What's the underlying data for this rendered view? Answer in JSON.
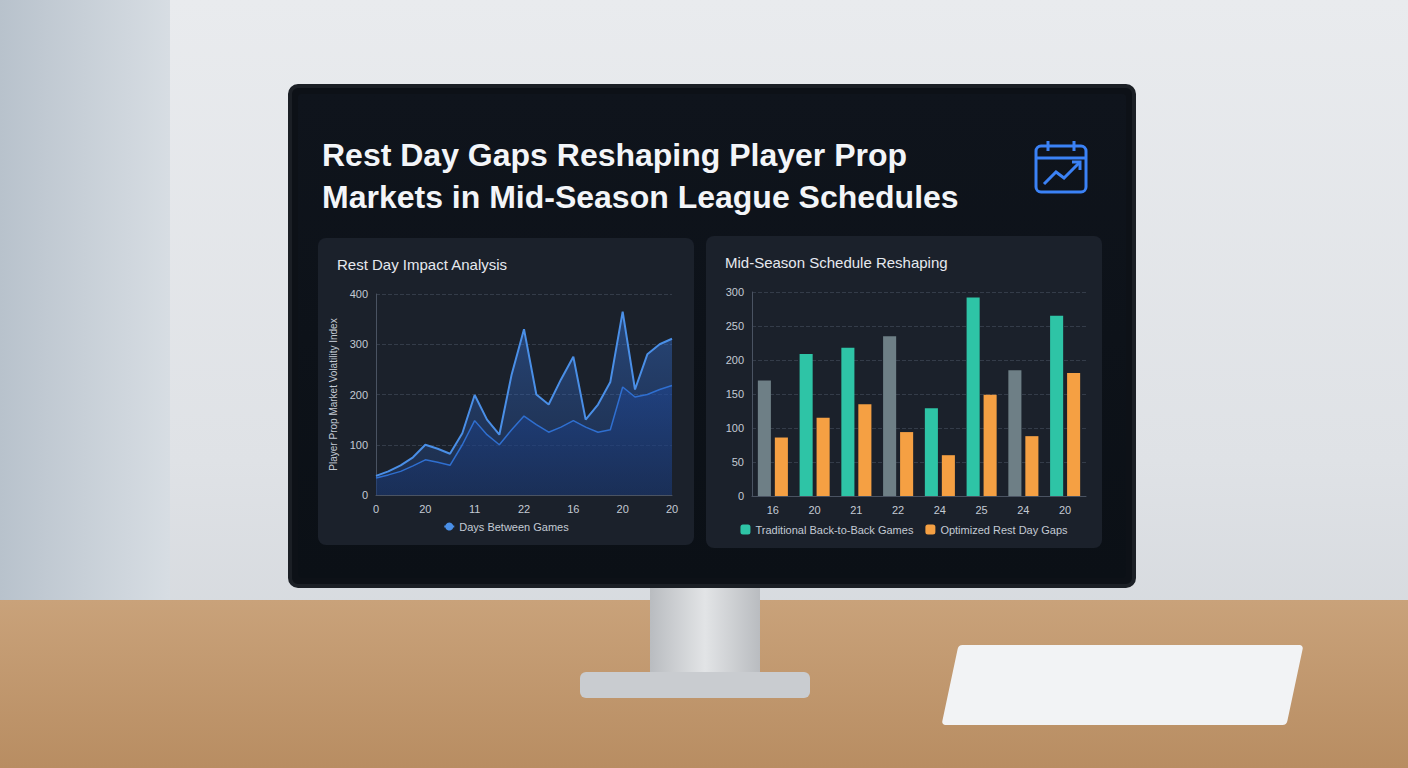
{
  "title": "Rest Day Gaps Reshaping Player Prop Markets in Mid-Season League Schedules",
  "chart_data": [
    {
      "type": "line",
      "title": "Rest Day Impact Analysis",
      "y_label": "Player Prop Market Volatility Index",
      "categories": [
        "0",
        null,
        null,
        null,
        "20",
        null,
        null,
        null,
        "11",
        null,
        null,
        null,
        "22",
        null,
        null,
        null,
        "16",
        null,
        null,
        null,
        "20",
        null,
        null,
        null,
        "20"
      ],
      "series": [
        {
          "name": "Days Between Games",
          "color": "#4a8fe7",
          "values": [
            38,
            47,
            59,
            75,
            100,
            92,
            82,
            123,
            199,
            150,
            120,
            240,
            330,
            200,
            180,
            230,
            275,
            150,
            180,
            225,
            365,
            210,
            280,
            300,
            311
          ]
        },
        {
          "color": "#2f6fd0",
          "values": [
            34,
            40,
            47,
            58,
            70,
            65,
            59,
            100,
            148,
            120,
            100,
            130,
            157,
            140,
            125,
            135,
            148,
            135,
            125,
            130,
            215,
            195,
            200,
            210,
            218
          ]
        }
      ],
      "ylim": [
        0,
        400
      ],
      "yticks": [
        0,
        100,
        200,
        300,
        400
      ],
      "grid": true,
      "legend": "bottom"
    },
    {
      "type": "bar",
      "title": "Mid-Season Schedule Reshaping",
      "categories": [
        "16",
        "20",
        "21",
        "22",
        "24",
        "25",
        "24",
        "20"
      ],
      "series": [
        {
          "name": "Traditional Back-to-Back Games",
          "color": "#2ec4a6",
          "colors": [
            "#6e7f86",
            "#2ec4a6",
            "#2ec4a6",
            "#6e7f86",
            "#2ec4a6",
            "#2ec4a6",
            "#6e7f86",
            "#2ec4a6"
          ],
          "values": [
            170,
            209,
            218,
            235,
            129,
            292,
            185,
            265
          ]
        },
        {
          "name": "Optimized Rest Day Gaps",
          "color": "#f5a043",
          "values": [
            86,
            115,
            135,
            94,
            60,
            149,
            88,
            181
          ]
        }
      ],
      "ylim": [
        0,
        300
      ],
      "yticks": [
        0,
        50,
        100,
        150,
        200,
        250,
        300
      ],
      "grid": true,
      "legend": "bottom"
    }
  ]
}
